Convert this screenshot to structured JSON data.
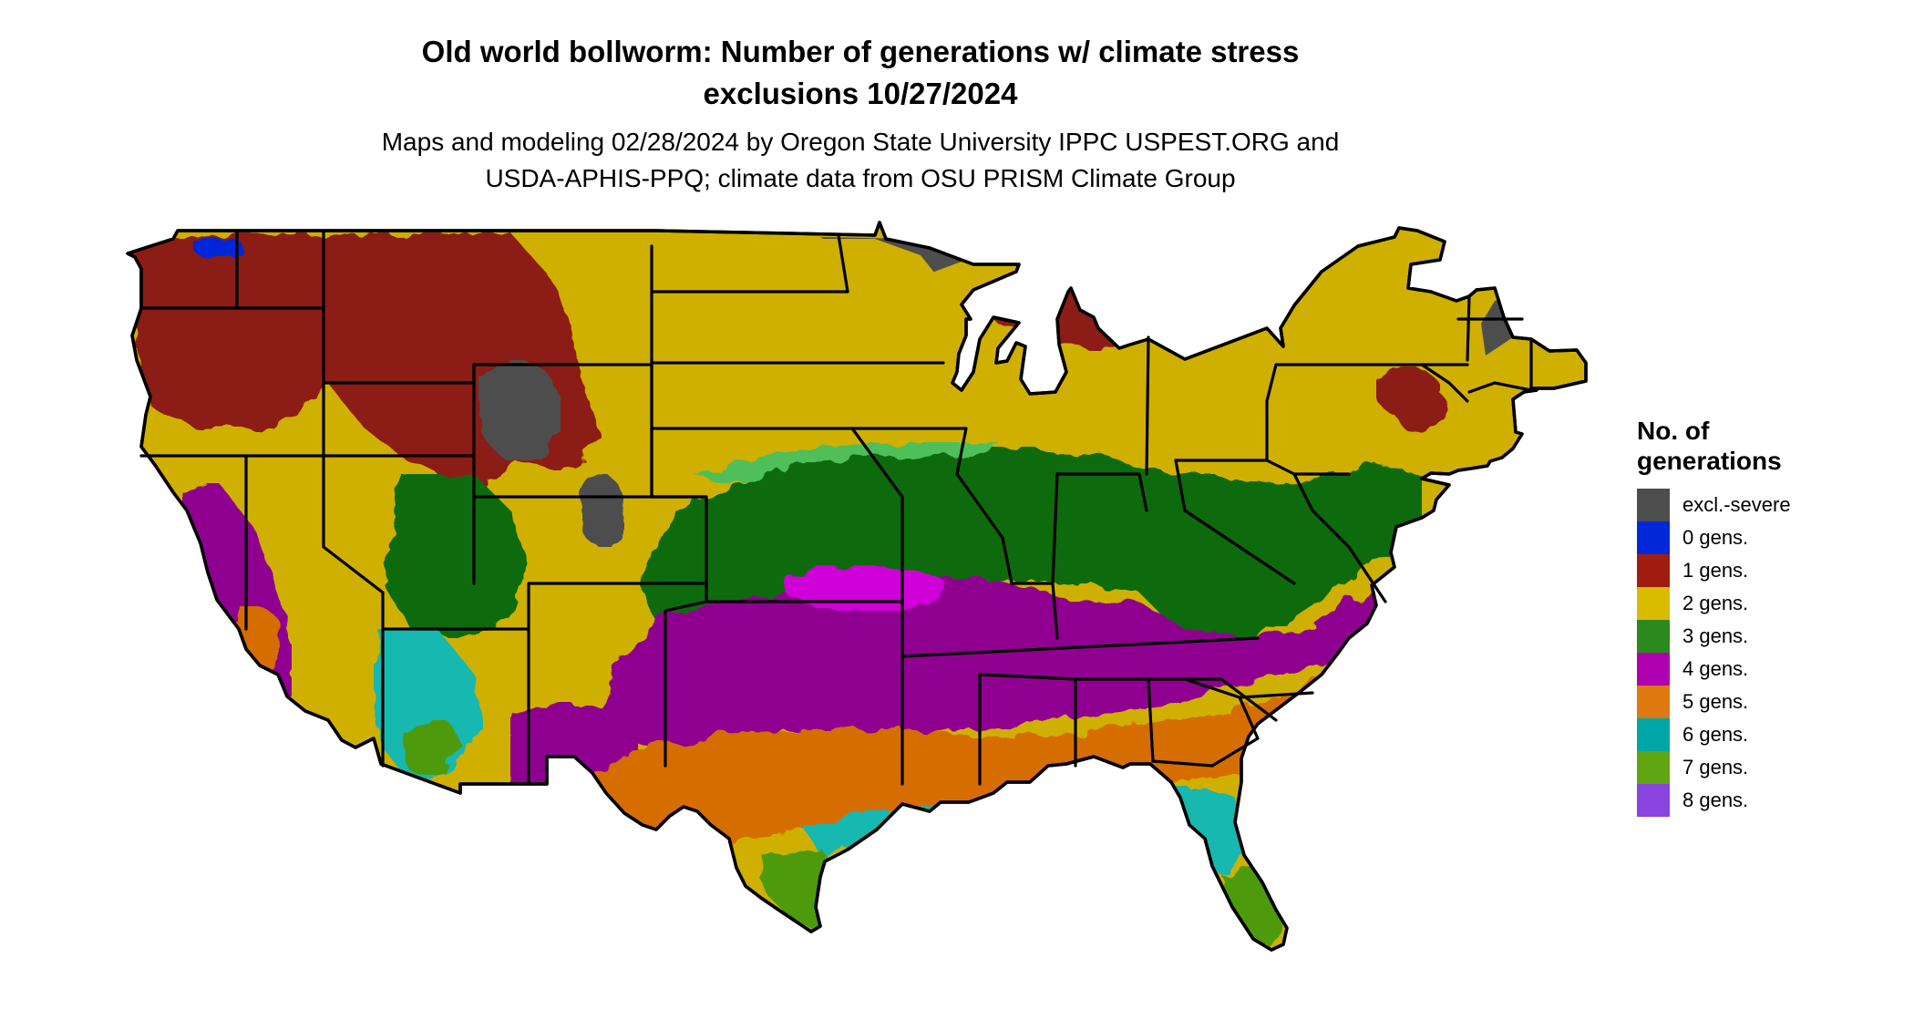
{
  "title": {
    "line1": "Old world bollworm: Number of generations w/ climate stress",
    "line2": "exclusions 10/27/2024"
  },
  "subtitle": {
    "line1": "Maps and modeling 02/28/2024 by Oregon State University IPPC USPEST.ORG and",
    "line2": "USDA-APHIS-PPQ; climate data from OSU PRISM Climate Group"
  },
  "legend": {
    "title_line1": "No. of",
    "title_line2": "generations",
    "items": [
      {
        "label": "excl.-severe",
        "color": "#4d4d4d"
      },
      {
        "label": "0 gens.",
        "color": "#0028d8"
      },
      {
        "label": "1 gens.",
        "color": "#a11d12"
      },
      {
        "label": "2 gens.",
        "color": "#d9bc00"
      },
      {
        "label": "3 gens.",
        "color": "#2a8a1e"
      },
      {
        "label": "4 gens.",
        "color": "#b000b0"
      },
      {
        "label": "5 gens.",
        "color": "#de7a10"
      },
      {
        "label": "6 gens.",
        "color": "#00a6a6"
      },
      {
        "label": "7 gens.",
        "color": "#62a512"
      },
      {
        "label": "8 gens.",
        "color": "#8a44e0"
      }
    ]
  },
  "map_colors": {
    "excl": "#4d4d4d",
    "gen0": "#0028d8",
    "gen1": "#8c1a12",
    "gen2": "#cfb000",
    "gen3": "#0f6a0f",
    "gen3_light": "#4fbf5a",
    "gen4": "#900090",
    "gen4_bright": "#d000d8",
    "gen5": "#d66d00",
    "gen6": "#19b8b0",
    "gen7": "#4d9a10",
    "gen8": "#8a44e0",
    "border": "#000000"
  }
}
